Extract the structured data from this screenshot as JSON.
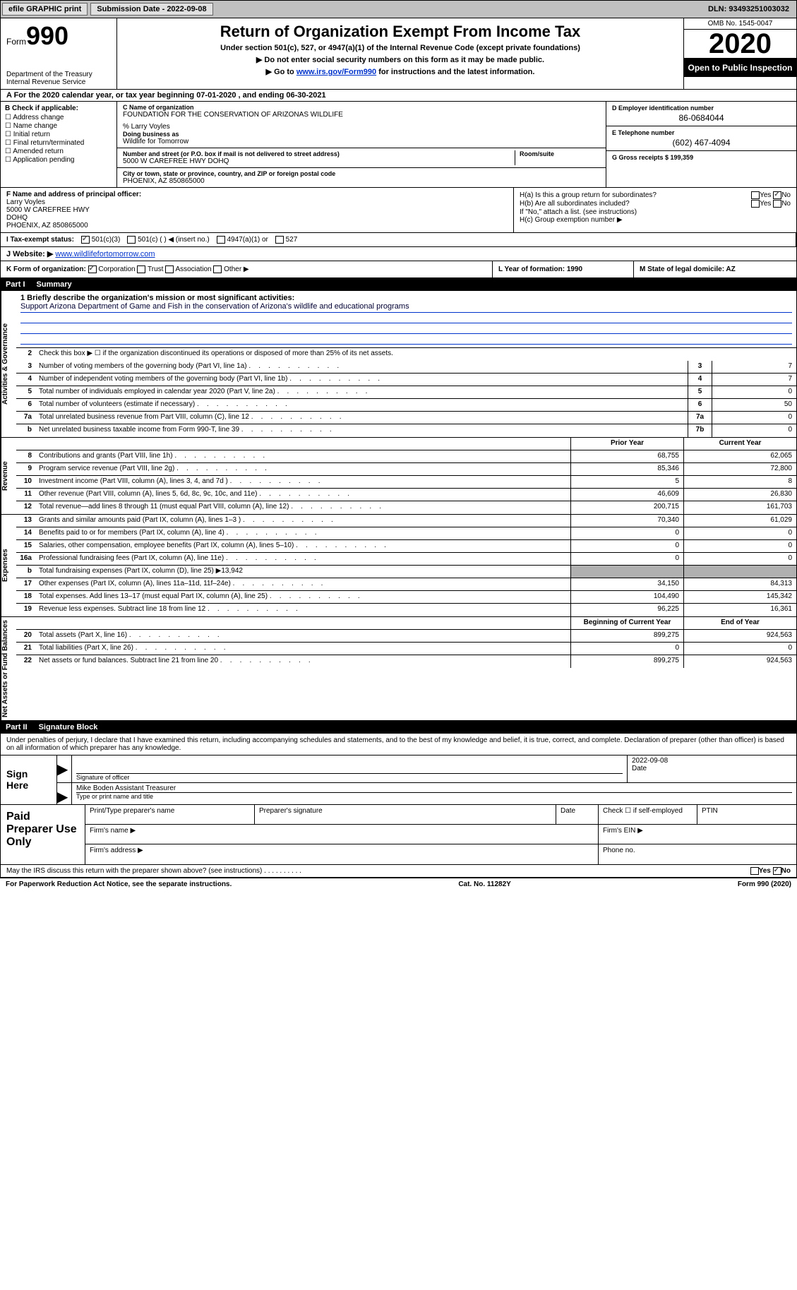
{
  "topbar": {
    "efile": "efile GRAPHIC print",
    "subm_label": "Submission Date - 2022-09-08",
    "dln": "DLN: 93493251003032"
  },
  "header": {
    "form": "Form",
    "num": "990",
    "dept": "Department of the Treasury\nInternal Revenue Service",
    "title": "Return of Organization Exempt From Income Tax",
    "sub": "Under section 501(c), 527, or 4947(a)(1) of the Internal Revenue Code (except private foundations)",
    "note1": "▶ Do not enter social security numbers on this form as it may be made public.",
    "note2_pre": "▶ Go to ",
    "note2_link": "www.irs.gov/Form990",
    "note2_post": " for instructions and the latest information.",
    "omb": "OMB No. 1545-0047",
    "year": "2020",
    "open": "Open to Public Inspection"
  },
  "line_a": "A   For the 2020 calendar year, or tax year beginning 07-01-2020    , and ending 06-30-2021",
  "box_b": {
    "hdr": "B Check if applicable:",
    "items": [
      "☐ Address change",
      "☐ Name change",
      "☐ Initial return",
      "☐ Final return/terminated",
      "☐ Amended return",
      "☐ Application pending"
    ]
  },
  "box_c": {
    "name_lbl": "C Name of organization",
    "name": "FOUNDATION FOR THE CONSERVATION OF ARIZONAS WILDLIFE",
    "care": "% Larry Voyles",
    "dba_lbl": "Doing business as",
    "dba": "Wildlife for Tomorrow",
    "addr_lbl": "Number and street (or P.O. box if mail is not delivered to street address)",
    "addr": "5000 W CAREFREE HWY DOHQ",
    "room_lbl": "Room/suite",
    "city_lbl": "City or town, state or province, country, and ZIP or foreign postal code",
    "city": "PHOENIX, AZ   850865000"
  },
  "box_d": {
    "lbl": "D Employer identification number",
    "val": "86-0684044"
  },
  "box_e": {
    "lbl": "E Telephone number",
    "val": "(602) 467-4094"
  },
  "box_g": {
    "lbl": "G Gross receipts $ 199,359"
  },
  "box_f": {
    "lbl": "F Name and address of principal officer:",
    "name": "Larry Voyles",
    "l1": "5000 W CAREFREE HWY",
    "l2": "DOHQ",
    "l3": "PHOENIX, AZ   850865000"
  },
  "box_h": {
    "ha": "H(a)  Is this a group return for subordinates?",
    "hb": "H(b)  Are all subordinates included?",
    "hb2": "If \"No,\" attach a list. (see instructions)",
    "hc": "H(c)  Group exemption number ▶",
    "yes": "Yes",
    "no": "No"
  },
  "row_i": {
    "lbl": "I    Tax-exempt status:",
    "a": "501(c)(3)",
    "b": "501(c) (  ) ◀ (insert no.)",
    "c": "4947(a)(1) or",
    "d": "527"
  },
  "row_j": {
    "lbl": "J    Website: ▶",
    "url": "www.wildlifefortomorrow.com"
  },
  "row_k": {
    "k_lbl": "K Form of organization:",
    "k_opts": [
      "Corporation",
      "Trust",
      "Association",
      "Other ▶"
    ],
    "l": "L Year of formation: 1990",
    "m": "M State of legal domicile: AZ"
  },
  "part1": {
    "num": "Part I",
    "title": "Summary"
  },
  "mission_lbl": "1    Briefly describe the organization's mission or most significant activities:",
  "mission": "Support Arizona Department of Game and Fish in the conservation of Arizona's wildlife and educational programs",
  "gov_rows": [
    {
      "n": "2",
      "t": "Check this box ▶ ☐  if the organization discontinued its operations or disposed of more than 25% of its net assets."
    },
    {
      "n": "3",
      "t": "Number of voting members of the governing body (Part VI, line 1a)",
      "c": "3",
      "v": "7"
    },
    {
      "n": "4",
      "t": "Number of independent voting members of the governing body (Part VI, line 1b)",
      "c": "4",
      "v": "7"
    },
    {
      "n": "5",
      "t": "Total number of individuals employed in calendar year 2020 (Part V, line 2a)",
      "c": "5",
      "v": "0"
    },
    {
      "n": "6",
      "t": "Total number of volunteers (estimate if necessary)",
      "c": "6",
      "v": "50"
    },
    {
      "n": "7a",
      "t": "Total unrelated business revenue from Part VIII, column (C), line 12",
      "c": "7a",
      "v": "0"
    },
    {
      "n": "b",
      "t": "Net unrelated business taxable income from Form 990-T, line 39",
      "c": "7b",
      "v": "0"
    }
  ],
  "col_hdr": {
    "prior": "Prior Year",
    "curr": "Current Year"
  },
  "rev_rows": [
    {
      "n": "8",
      "t": "Contributions and grants (Part VIII, line 1h)",
      "p": "68,755",
      "c": "62,065"
    },
    {
      "n": "9",
      "t": "Program service revenue (Part VIII, line 2g)",
      "p": "85,346",
      "c": "72,800"
    },
    {
      "n": "10",
      "t": "Investment income (Part VIII, column (A), lines 3, 4, and 7d )",
      "p": "5",
      "c": "8"
    },
    {
      "n": "11",
      "t": "Other revenue (Part VIII, column (A), lines 5, 6d, 8c, 9c, 10c, and 11e)",
      "p": "46,609",
      "c": "26,830"
    },
    {
      "n": "12",
      "t": "Total revenue—add lines 8 through 11 (must equal Part VIII, column (A), line 12)",
      "p": "200,715",
      "c": "161,703"
    }
  ],
  "exp_rows": [
    {
      "n": "13",
      "t": "Grants and similar amounts paid (Part IX, column (A), lines 1–3 )",
      "p": "70,340",
      "c": "61,029"
    },
    {
      "n": "14",
      "t": "Benefits paid to or for members (Part IX, column (A), line 4)",
      "p": "0",
      "c": "0"
    },
    {
      "n": "15",
      "t": "Salaries, other compensation, employee benefits (Part IX, column (A), lines 5–10)",
      "p": "0",
      "c": "0"
    },
    {
      "n": "16a",
      "t": "Professional fundraising fees (Part IX, column (A), line 11e)",
      "p": "0",
      "c": "0"
    },
    {
      "n": "b",
      "t": "Total fundraising expenses (Part IX, column (D), line 25) ▶13,942",
      "shade": true
    },
    {
      "n": "17",
      "t": "Other expenses (Part IX, column (A), lines 11a–11d, 11f–24e)",
      "p": "34,150",
      "c": "84,313"
    },
    {
      "n": "18",
      "t": "Total expenses. Add lines 13–17 (must equal Part IX, column (A), line 25)",
      "p": "104,490",
      "c": "145,342"
    },
    {
      "n": "19",
      "t": "Revenue less expenses. Subtract line 18 from line 12",
      "p": "96,225",
      "c": "16,361"
    }
  ],
  "net_hdr": {
    "b": "Beginning of Current Year",
    "e": "End of Year"
  },
  "net_rows": [
    {
      "n": "20",
      "t": "Total assets (Part X, line 16)",
      "p": "899,275",
      "c": "924,563"
    },
    {
      "n": "21",
      "t": "Total liabilities (Part X, line 26)",
      "p": "0",
      "c": "0"
    },
    {
      "n": "22",
      "t": "Net assets or fund balances. Subtract line 21 from line 20",
      "p": "899,275",
      "c": "924,563"
    }
  ],
  "part2": {
    "num": "Part II",
    "title": "Signature Block"
  },
  "sig_text": "Under penalties of perjury, I declare that I have examined this return, including accompanying schedules and statements, and to the best of my knowledge and belief, it is true, correct, and complete. Declaration of preparer (other than officer) is based on all information of which preparer has any knowledge.",
  "sign": {
    "here": "Sign Here",
    "sig_lbl": "Signature of officer",
    "date": "2022-09-08",
    "date_lbl": "Date",
    "name": "Mike Boden  Assistant Treasurer",
    "name_lbl": "Type or print name and title"
  },
  "prep": {
    "title": "Paid Preparer Use Only",
    "r1": [
      "Print/Type preparer's name",
      "Preparer's signature",
      "Date",
      "Check ☐ if self-employed",
      "PTIN"
    ],
    "r2a": "Firm's name  ▶",
    "r2b": "Firm's EIN ▶",
    "r3a": "Firm's address ▶",
    "r3b": "Phone no."
  },
  "irs_q": "May the IRS discuss this return with the preparer shown above? (see instructions)   .    .    .    .    .    .    .    .    .    .",
  "footer": {
    "l": "For Paperwork Reduction Act Notice, see the separate instructions.",
    "c": "Cat. No. 11282Y",
    "r": "Form 990 (2020)"
  },
  "vlabels": {
    "gov": "Activities & Governance",
    "rev": "Revenue",
    "exp": "Expenses",
    "net": "Net Assets or Fund Balances"
  }
}
